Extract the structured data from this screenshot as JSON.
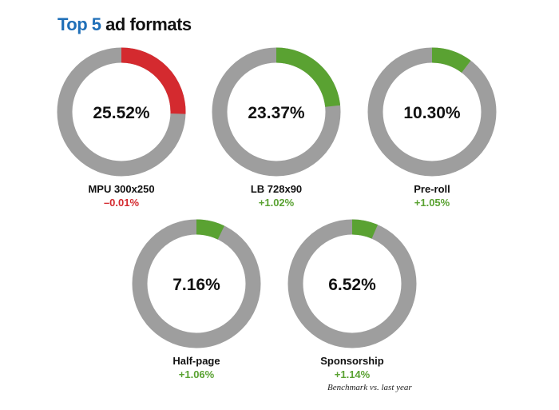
{
  "title": {
    "number": "Top 5",
    "rest": "ad formats"
  },
  "colors": {
    "ring": "#9e9e9e",
    "negative": "#d42a2f",
    "positive": "#5aa232",
    "title_number": "#1f6fb8"
  },
  "chart_data": {
    "type": "donut",
    "title": "Top 5 ad formats",
    "unit": "%",
    "items": [
      {
        "name": "MPU 300x250",
        "value": 25.52,
        "value_label": "25.52%",
        "change_label": "–0.01%",
        "trend": "negative"
      },
      {
        "name": "LB 728x90",
        "value": 23.37,
        "value_label": "23.37%",
        "change_label": "+1.02%",
        "trend": "positive"
      },
      {
        "name": "Pre-roll",
        "value": 10.3,
        "value_label": "10.30%",
        "change_label": "+1.05%",
        "trend": "positive"
      },
      {
        "name": "Half-page",
        "value": 7.16,
        "value_label": "7.16%",
        "change_label": "+1.06%",
        "trend": "positive"
      },
      {
        "name": "Sponsorship",
        "value": 6.52,
        "value_label": "6.52%",
        "change_label": "+1.14%",
        "trend": "positive"
      }
    ],
    "footnote": "Benchmark vs. last year"
  }
}
